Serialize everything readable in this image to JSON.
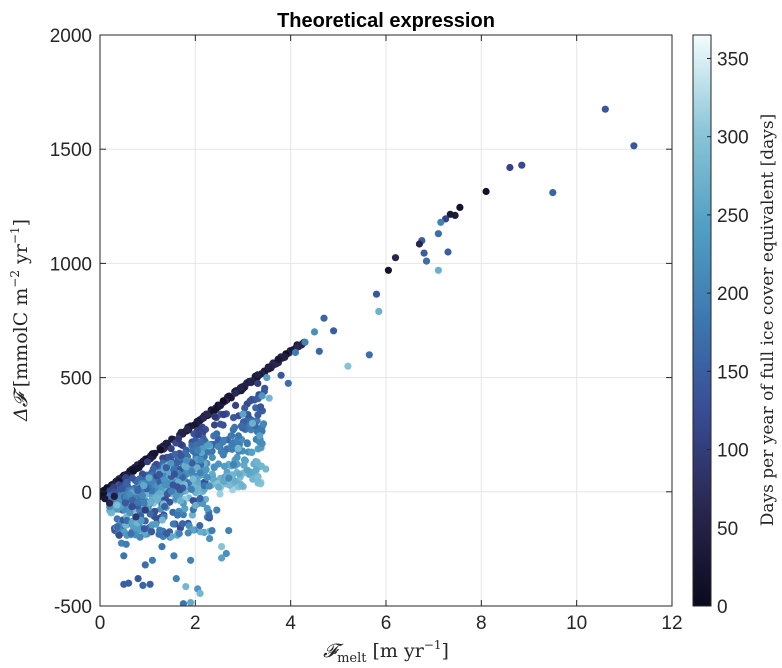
{
  "chart_data": {
    "type": "scatter",
    "title": "Theoretical expression",
    "xlabel": "𝓕melt [m yr⁻¹]",
    "xlabel_parts": {
      "main": "𝓕",
      "sub": "melt",
      "unit_pre": "[m yr",
      "sup": "−1",
      "unit_post": "]"
    },
    "ylabel": "Δ𝓕 [mmolC m⁻² yr⁻¹]",
    "ylabel_parts": {
      "delta": "Δ𝓕",
      "unit_pre": "[mmolC m",
      "sup1": "−2",
      "unit_mid": " yr",
      "sup2": "−1",
      "unit_post": "]"
    },
    "xlim": [
      0,
      12
    ],
    "ylim": [
      -500,
      2000
    ],
    "xticks": [
      0,
      2,
      4,
      6,
      8,
      10,
      12
    ],
    "yticks": [
      -500,
      0,
      500,
      1000,
      1500,
      2000
    ],
    "grid": true,
    "colorbar": {
      "label": "Days per year of full ice cover equivalent [days]",
      "range": [
        0,
        365
      ],
      "ticks": [
        0,
        50,
        100,
        150,
        200,
        250,
        300,
        350
      ],
      "colormap": "ice",
      "colors": [
        "#0a0a1e",
        "#28264e",
        "#384a92",
        "#3c77b0",
        "#529fc4",
        "#8bc6d8",
        "#f2fdfd"
      ]
    },
    "points": [
      {
        "x": 11.2,
        "y": 1515,
        "c": 140
      },
      {
        "x": 10.6,
        "y": 1675,
        "c": 140
      },
      {
        "x": 9.5,
        "y": 1310,
        "c": 160
      },
      {
        "x": 8.85,
        "y": 1430,
        "c": 120
      },
      {
        "x": 8.6,
        "y": 1420,
        "c": 110
      },
      {
        "x": 8.1,
        "y": 1315,
        "c": 15
      },
      {
        "x": 7.55,
        "y": 1245,
        "c": 20
      },
      {
        "x": 7.45,
        "y": 1210,
        "c": 40
      },
      {
        "x": 7.35,
        "y": 1215,
        "c": 30
      },
      {
        "x": 7.25,
        "y": 1195,
        "c": 110
      },
      {
        "x": 7.15,
        "y": 1180,
        "c": 200
      },
      {
        "x": 7.1,
        "y": 1130,
        "c": 170
      },
      {
        "x": 7.3,
        "y": 1050,
        "c": 150
      },
      {
        "x": 7.1,
        "y": 970,
        "c": 270
      },
      {
        "x": 6.75,
        "y": 1100,
        "c": 150
      },
      {
        "x": 6.7,
        "y": 1085,
        "c": 60
      },
      {
        "x": 6.8,
        "y": 1045,
        "c": 150
      },
      {
        "x": 6.85,
        "y": 1010,
        "c": 170
      },
      {
        "x": 6.2,
        "y": 1025,
        "c": 60
      },
      {
        "x": 6.05,
        "y": 970,
        "c": 20
      },
      {
        "x": 5.85,
        "y": 790,
        "c": 270
      },
      {
        "x": 5.8,
        "y": 865,
        "c": 140
      },
      {
        "x": 5.65,
        "y": 600,
        "c": 170
      },
      {
        "x": 5.2,
        "y": 550,
        "c": 300
      },
      {
        "x": 4.9,
        "y": 705,
        "c": 150
      },
      {
        "x": 4.6,
        "y": 615,
        "c": 160
      },
      {
        "x": 4.7,
        "y": 760,
        "c": 160
      },
      {
        "x": 4.5,
        "y": 700,
        "c": 220
      },
      {
        "x": 4.3,
        "y": 655,
        "c": 200
      },
      {
        "x": 4.1,
        "y": 610,
        "c": 190
      },
      {
        "x": 3.95,
        "y": 475,
        "c": 170
      },
      {
        "x": 3.8,
        "y": 510,
        "c": 140
      },
      {
        "x": 3.5,
        "y": 500,
        "c": 240
      },
      {
        "x": 3.55,
        "y": 410,
        "c": 280
      },
      {
        "x": 3.4,
        "y": 420,
        "c": 230
      },
      {
        "x": 3.35,
        "y": 245,
        "c": 250
      },
      {
        "x": 3.2,
        "y": 300,
        "c": 270
      },
      {
        "x": 3.0,
        "y": 340,
        "c": 250
      },
      {
        "x": 2.9,
        "y": 190,
        "c": 280
      },
      {
        "x": 2.8,
        "y": 120,
        "c": 200
      },
      {
        "x": 2.7,
        "y": 60,
        "c": 210
      },
      {
        "x": 2.7,
        "y": -170,
        "c": 200
      },
      {
        "x": 2.65,
        "y": -270,
        "c": 220
      },
      {
        "x": 2.55,
        "y": -240,
        "c": 300
      },
      {
        "x": 2.55,
        "y": -290,
        "c": 250
      },
      {
        "x": 2.45,
        "y": -80,
        "c": 200
      },
      {
        "x": 2.35,
        "y": -170,
        "c": 190
      },
      {
        "x": 2.3,
        "y": -205,
        "c": 220
      },
      {
        "x": 2.05,
        "y": -425,
        "c": 230
      },
      {
        "x": 2.1,
        "y": -445,
        "c": 280
      },
      {
        "x": 1.9,
        "y": -485,
        "c": 260
      },
      {
        "x": 1.75,
        "y": -490,
        "c": 180
      },
      {
        "x": 1.8,
        "y": -415,
        "c": 280
      },
      {
        "x": 1.6,
        "y": -380,
        "c": 200
      },
      {
        "x": 1.55,
        "y": -280,
        "c": 190
      },
      {
        "x": 1.9,
        "y": -300,
        "c": 200
      },
      {
        "x": 1.85,
        "y": -180,
        "c": 210
      },
      {
        "x": 1.3,
        "y": -240,
        "c": 180
      },
      {
        "x": 1.1,
        "y": -300,
        "c": 190
      },
      {
        "x": 0.95,
        "y": -320,
        "c": 170
      },
      {
        "x": 1.05,
        "y": -405,
        "c": 150
      },
      {
        "x": 0.9,
        "y": -410,
        "c": 160
      },
      {
        "x": 0.6,
        "y": -400,
        "c": 150
      },
      {
        "x": 0.5,
        "y": -405,
        "c": 150
      },
      {
        "x": 0.5,
        "y": -280,
        "c": 180
      },
      {
        "x": 0.45,
        "y": -225,
        "c": 200
      },
      {
        "x": 0.55,
        "y": -230,
        "c": 190
      },
      {
        "x": 0.8,
        "y": -380,
        "c": 140
      },
      {
        "x": 0.95,
        "y": -80,
        "c": 100
      },
      {
        "x": 0.75,
        "y": -110,
        "c": 90
      },
      {
        "x": 0.2,
        "y": -50,
        "c": 60
      },
      {
        "x": 0.3,
        "y": -20,
        "c": 40
      },
      {
        "x": 0.1,
        "y": -30,
        "c": 30
      }
    ]
  }
}
